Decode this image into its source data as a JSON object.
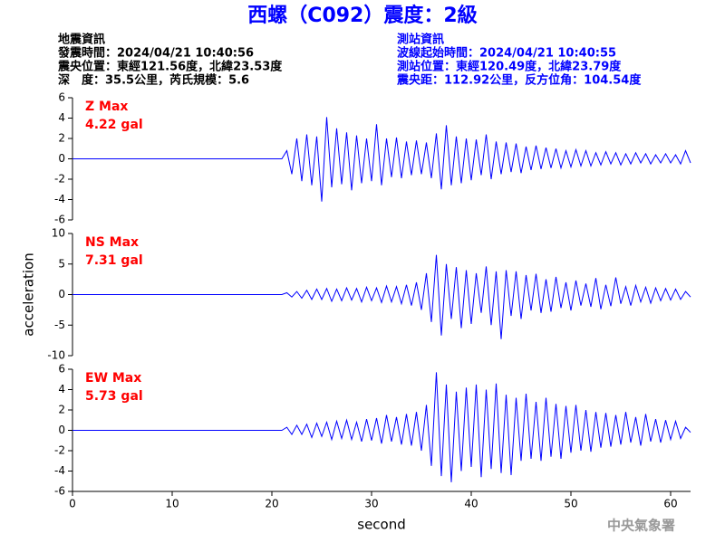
{
  "header": {
    "title": "西螺（C092）震度：2級",
    "left": [
      "地震資訊",
      "發震時間：2024/04/21 10:40:56",
      "震央位置：東經121.56度，北緯23.53度",
      "深　度：35.5公里，芮氏規模：5.6"
    ],
    "right": [
      "測站資訊",
      "波線起始時間：2024/04/21 10:40:55",
      "測站位置：東經120.49度，北緯23.79度",
      "震央距：112.92公里，反方位角：104.54度"
    ]
  },
  "footer": {
    "watermark": "中央氣象署"
  },
  "chart_data": [
    {
      "type": "line",
      "color": "#0000ff",
      "annotation": [
        "Z Max",
        "4.22 gal"
      ],
      "x": [
        0,
        21,
        21.5,
        22,
        22.5,
        23,
        23.5,
        24,
        24.5,
        25,
        25.5,
        26,
        26.5,
        27,
        27.5,
        28,
        28.5,
        29,
        29.5,
        30,
        30.5,
        31,
        31.5,
        32,
        32.5,
        33,
        33.5,
        34,
        34.5,
        35,
        35.5,
        36,
        36.5,
        37,
        37.5,
        38,
        38.5,
        39,
        39.5,
        40,
        40.5,
        41,
        41.5,
        42,
        42.5,
        43,
        43.5,
        44,
        44.5,
        45,
        45.5,
        46,
        46.5,
        47,
        47.5,
        48,
        48.5,
        49,
        49.5,
        50,
        50.5,
        51,
        51.5,
        52,
        52.5,
        53,
        53.5,
        54,
        54.5,
        55,
        55.5,
        56,
        56.5,
        57,
        57.5,
        58,
        58.5,
        59,
        59.5,
        60,
        60.5,
        61,
        61.5,
        62
      ],
      "values": [
        0,
        0,
        0.8,
        -1.5,
        2.0,
        -2.2,
        2.4,
        -2.6,
        2.2,
        -4.2,
        4.1,
        -2.8,
        3.0,
        -2.5,
        2.6,
        -3.1,
        2.3,
        -2.4,
        2.0,
        -2.2,
        3.4,
        -2.6,
        2.0,
        -1.8,
        2.1,
        -1.9,
        1.7,
        -1.6,
        1.8,
        -1.5,
        1.6,
        -1.9,
        2.5,
        -3.0,
        3.3,
        -2.6,
        2.2,
        -2.4,
        2.0,
        -2.1,
        1.9,
        -1.6,
        2.4,
        -2.0,
        1.7,
        -1.5,
        1.6,
        -1.3,
        1.5,
        -1.4,
        1.2,
        -1.1,
        1.3,
        -1.0,
        1.1,
        -0.9,
        1.0,
        -0.9,
        0.8,
        -0.8,
        0.9,
        -0.7,
        0.8,
        -0.7,
        0.6,
        -0.6,
        0.7,
        -0.5,
        0.6,
        -0.6,
        0.5,
        -0.5,
        0.6,
        -0.4,
        0.5,
        -0.5,
        0.4,
        -0.4,
        0.5,
        -0.4,
        0.4,
        -0.5,
        0.8,
        -0.4
      ],
      "xlim": [
        0,
        62
      ],
      "ylim": [
        -6,
        6
      ],
      "yticks": [
        6,
        4,
        2,
        0,
        -2,
        -4,
        -6
      ]
    },
    {
      "type": "line",
      "color": "#0000ff",
      "annotation": [
        "NS Max",
        "7.31 gal"
      ],
      "y_label": "acceleration",
      "x": [
        0,
        21,
        21.5,
        22,
        22.5,
        23,
        23.5,
        24,
        24.5,
        25,
        25.5,
        26,
        26.5,
        27,
        27.5,
        28,
        28.5,
        29,
        29.5,
        30,
        30.5,
        31,
        31.5,
        32,
        32.5,
        33,
        33.5,
        34,
        34.5,
        35,
        35.5,
        36,
        36.5,
        37,
        37.5,
        38,
        38.5,
        39,
        39.5,
        40,
        40.5,
        41,
        41.5,
        42,
        42.5,
        43,
        43.5,
        44,
        44.5,
        45,
        45.5,
        46,
        46.5,
        47,
        47.5,
        48,
        48.5,
        49,
        49.5,
        50,
        50.5,
        51,
        51.5,
        52,
        52.5,
        53,
        53.5,
        54,
        54.5,
        55,
        55.5,
        56,
        56.5,
        57,
        57.5,
        58,
        58.5,
        59,
        59.5,
        60,
        60.5,
        61,
        61.5,
        62
      ],
      "values": [
        0,
        0,
        0.3,
        -0.4,
        0.5,
        -0.6,
        0.7,
        -0.8,
        0.9,
        -0.8,
        1.0,
        -1.1,
        0.9,
        -1.0,
        1.1,
        -0.9,
        1.0,
        -1.2,
        1.2,
        -1.0,
        1.1,
        -1.3,
        1.4,
        -1.2,
        1.3,
        -1.5,
        1.6,
        -1.8,
        2.0,
        -2.5,
        3.5,
        -4.5,
        6.5,
        -6.7,
        5.0,
        -4.0,
        4.5,
        -5.5,
        4.0,
        -4.8,
        3.5,
        -3.0,
        4.6,
        -5.0,
        3.8,
        -7.3,
        4.0,
        -3.5,
        3.8,
        -4.0,
        3.2,
        -2.6,
        3.4,
        -3.0,
        2.5,
        -2.8,
        2.9,
        -2.2,
        2.0,
        -2.6,
        2.3,
        -1.8,
        1.8,
        -2.0,
        2.7,
        -2.4,
        1.6,
        -1.9,
        2.8,
        -1.5,
        1.3,
        -1.8,
        1.5,
        -1.2,
        1.2,
        -1.4,
        1.1,
        -1.0,
        1.0,
        -0.9,
        0.9,
        -0.8,
        0.5,
        -0.4
      ],
      "xlim": [
        0,
        62
      ],
      "ylim": [
        -10,
        10
      ],
      "yticks": [
        10,
        5,
        0,
        -5,
        -10
      ]
    },
    {
      "type": "line",
      "color": "#0000ff",
      "annotation": [
        "EW Max",
        "5.73 gal"
      ],
      "x_label": "second",
      "x": [
        0,
        21,
        21.5,
        22,
        22.5,
        23,
        23.5,
        24,
        24.5,
        25,
        25.5,
        26,
        26.5,
        27,
        27.5,
        28,
        28.5,
        29,
        29.5,
        30,
        30.5,
        31,
        31.5,
        32,
        32.5,
        33,
        33.5,
        34,
        34.5,
        35,
        35.5,
        36,
        36.5,
        37,
        37.5,
        38,
        38.5,
        39,
        39.5,
        40,
        40.5,
        41,
        41.5,
        42,
        42.5,
        43,
        43.5,
        44,
        44.5,
        45,
        45.5,
        46,
        46.5,
        47,
        47.5,
        48,
        48.5,
        49,
        49.5,
        50,
        50.5,
        51,
        51.5,
        52,
        52.5,
        53,
        53.5,
        54,
        54.5,
        55,
        55.5,
        56,
        56.5,
        57,
        57.5,
        58,
        58.5,
        59,
        59.5,
        60,
        60.5,
        61,
        61.5,
        62
      ],
      "values": [
        0,
        0,
        0.3,
        -0.4,
        0.5,
        -0.4,
        0.6,
        -0.7,
        0.7,
        -0.6,
        0.8,
        -0.9,
        0.9,
        -0.8,
        1.0,
        -0.9,
        0.8,
        -1.1,
        1.1,
        -1.0,
        1.2,
        -1.3,
        1.5,
        -1.1,
        1.3,
        -1.4,
        1.6,
        -1.5,
        1.8,
        -2.0,
        2.5,
        -3.5,
        5.7,
        -4.5,
        4.5,
        -5.1,
        3.8,
        -4.0,
        4.2,
        -3.6,
        4.5,
        -4.6,
        4.0,
        -3.8,
        4.6,
        -4.2,
        3.5,
        -4.4,
        3.2,
        -3.0,
        3.6,
        -2.8,
        2.8,
        -3.0,
        3.2,
        -2.6,
        2.6,
        -2.8,
        2.4,
        -2.2,
        2.5,
        -2.0,
        2.0,
        -2.1,
        1.8,
        -1.7,
        1.7,
        -1.6,
        1.5,
        -1.4,
        1.8,
        -1.2,
        1.3,
        -1.5,
        1.6,
        -1.1,
        1.1,
        -1.2,
        1.0,
        -0.9,
        0.9,
        -0.8,
        0.3,
        -0.2
      ],
      "xlim": [
        0,
        62
      ],
      "ylim": [
        -6,
        6
      ],
      "yticks": [
        6,
        4,
        2,
        0,
        -2,
        -4,
        -6
      ],
      "xticks": [
        0,
        10,
        20,
        30,
        40,
        50,
        60
      ]
    }
  ]
}
